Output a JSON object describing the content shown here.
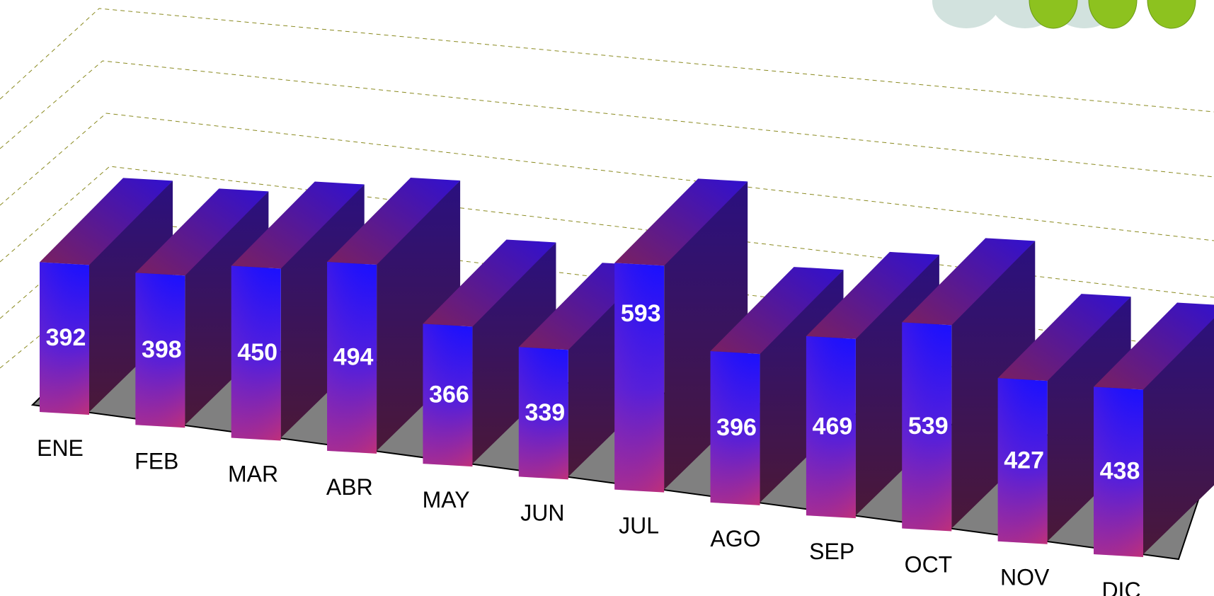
{
  "chart_data": {
    "type": "bar",
    "style": "3d-perspective",
    "categories": [
      "ENE",
      "FEB",
      "MAR",
      "ABR",
      "MAY",
      "JUN",
      "JUL",
      "AGO",
      "SEP",
      "OCT",
      "NOV",
      "DIC"
    ],
    "values": [
      392,
      398,
      450,
      494,
      366,
      339,
      593,
      396,
      469,
      539,
      427,
      438
    ],
    "data_labels": [
      "392",
      "398",
      "450",
      "494",
      "366",
      "339",
      "593",
      "396",
      "469",
      "539",
      "427",
      "438"
    ],
    "title": "",
    "xlabel": "",
    "ylabel": "",
    "grid": true,
    "legend": "none",
    "colors": {
      "bar_front_top": "#1a10ff",
      "bar_front_bottom": "#c0307a",
      "bar_side": "#3a1850",
      "bar_top": "#5a20a0",
      "floor": "#808080",
      "gridline": "#8a8a20"
    }
  },
  "decoration": {
    "name": "green-leaf-logo",
    "colors": [
      "#8dc21f",
      "#cfe0dc"
    ]
  }
}
